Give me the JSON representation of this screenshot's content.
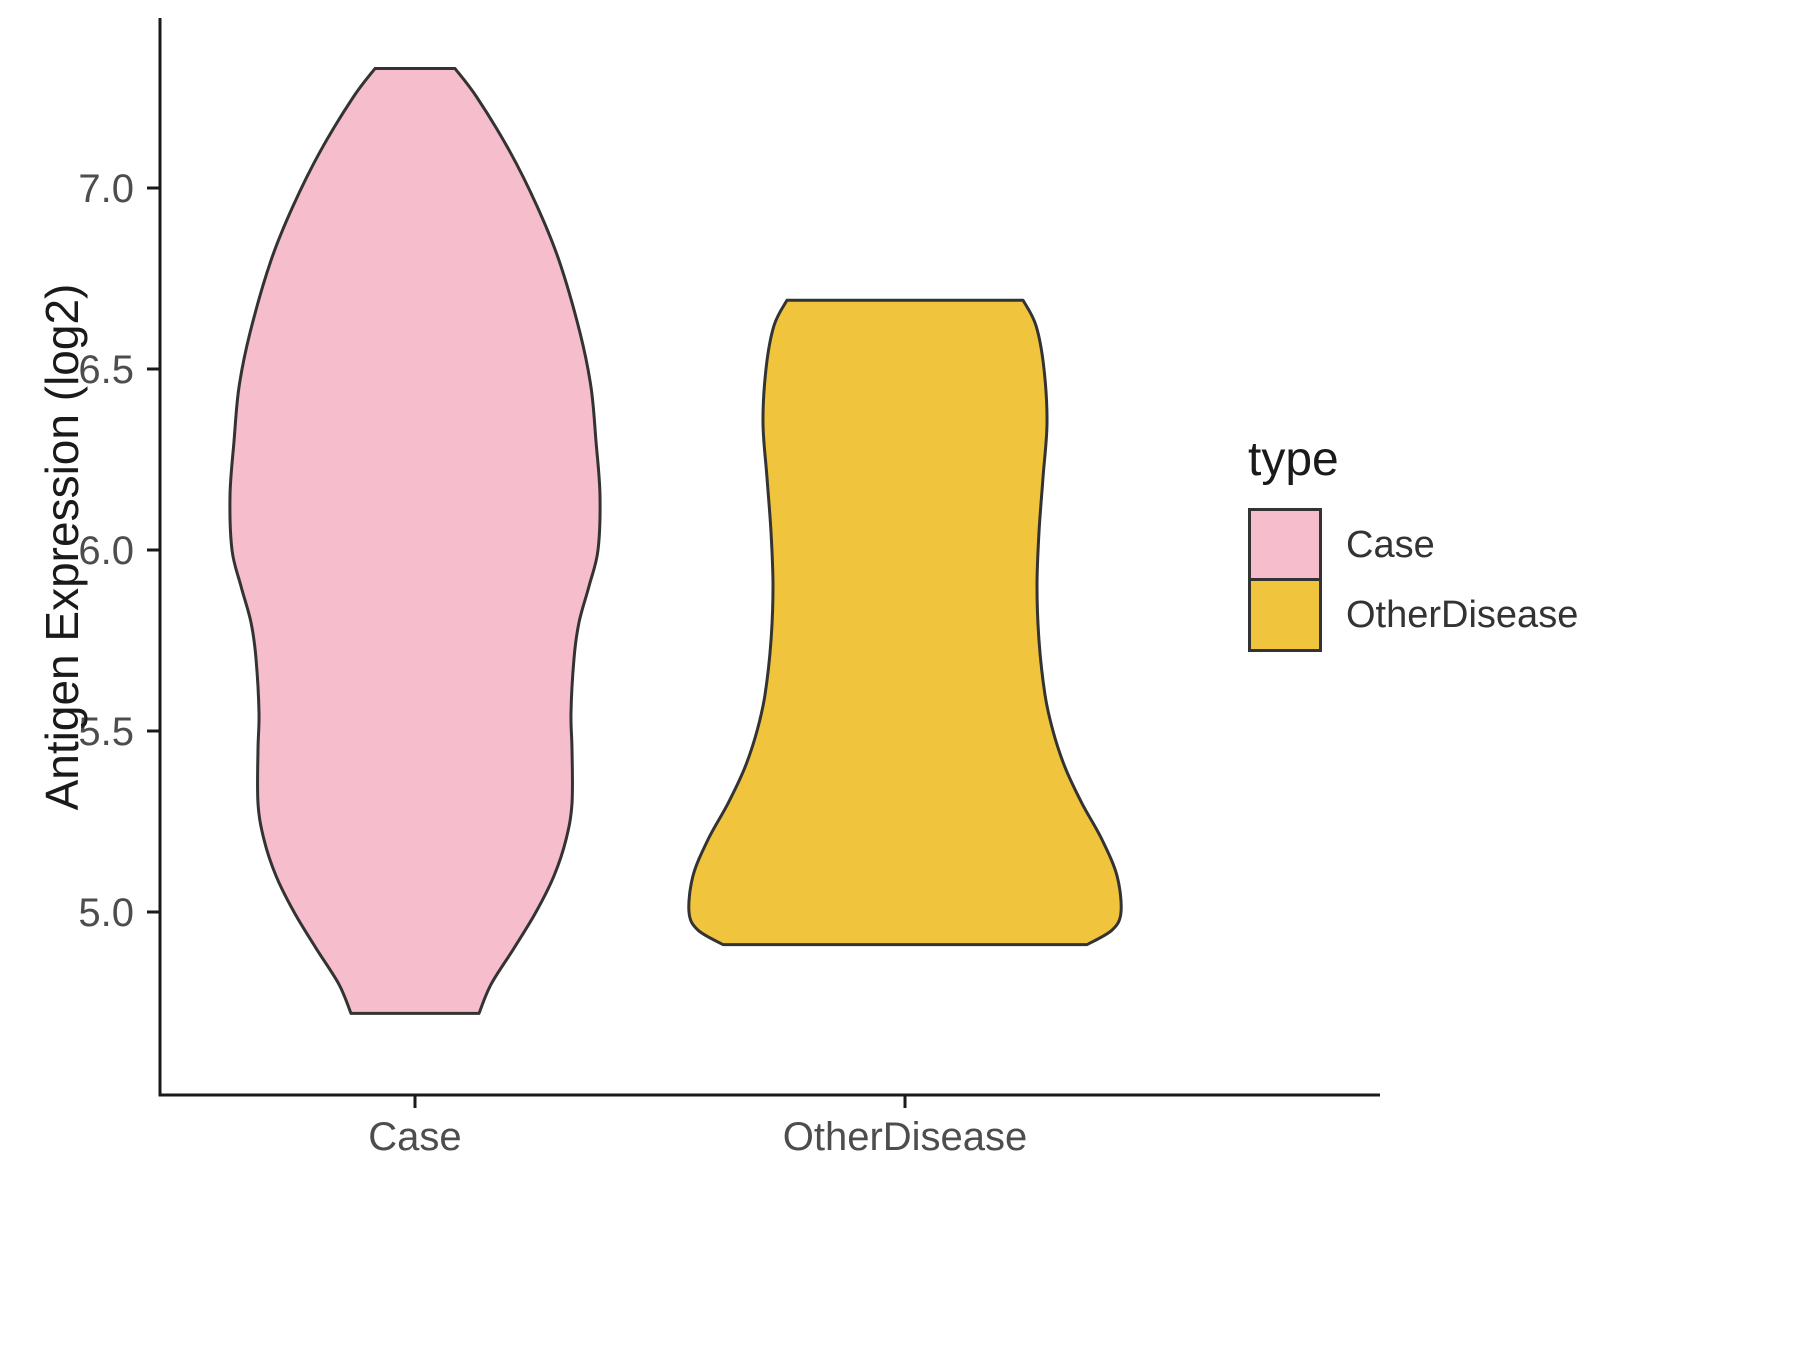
{
  "chart_data": {
    "type": "violin",
    "title": "",
    "xlabel": "",
    "ylabel": "Antigen Expression (log2)",
    "categories": [
      "Case",
      "OtherDisease"
    ],
    "y_ticks": [
      "5.0",
      "5.5",
      "6.0",
      "6.5",
      "7.0"
    ],
    "y_tick_values": [
      5.0,
      5.5,
      6.0,
      6.5,
      7.0
    ],
    "ylim": [
      4.5,
      7.47
    ],
    "grid": "off",
    "legend_position": "right",
    "legend": {
      "title": "type",
      "entries": [
        {
          "label": "Case",
          "color": "#F6BDCC"
        },
        {
          "label": "OtherDisease",
          "color": "#F0C43C"
        }
      ]
    },
    "style": {
      "axis_color": "#1a1a1a",
      "tick_label_color": "#4d4d4d",
      "violin_stroke": "#333333"
    },
    "violins": [
      {
        "category": "Case",
        "fill": "#F6BDCC",
        "y_min": 4.72,
        "y_max": 7.33,
        "profile": [
          [
            7.33,
            40
          ],
          [
            7.25,
            62
          ],
          [
            7.1,
            95
          ],
          [
            6.95,
            122
          ],
          [
            6.8,
            144
          ],
          [
            6.6,
            165
          ],
          [
            6.45,
            176
          ],
          [
            6.3,
            181
          ],
          [
            6.15,
            185
          ],
          [
            6.0,
            183
          ],
          [
            5.9,
            174
          ],
          [
            5.8,
            164
          ],
          [
            5.7,
            159
          ],
          [
            5.55,
            156
          ],
          [
            5.45,
            157
          ],
          [
            5.3,
            157
          ],
          [
            5.2,
            151
          ],
          [
            5.1,
            139
          ],
          [
            5.0,
            121
          ],
          [
            4.9,
            99
          ],
          [
            4.8,
            76
          ],
          [
            4.72,
            64
          ]
        ]
      },
      {
        "category": "OtherDisease",
        "fill": "#F0C43C",
        "y_min": 4.91,
        "y_max": 6.69,
        "profile": [
          [
            6.69,
            118
          ],
          [
            6.62,
            131
          ],
          [
            6.5,
            139
          ],
          [
            6.35,
            142
          ],
          [
            6.2,
            138
          ],
          [
            6.05,
            134
          ],
          [
            5.9,
            132
          ],
          [
            5.75,
            134
          ],
          [
            5.6,
            140
          ],
          [
            5.5,
            148
          ],
          [
            5.4,
            160
          ],
          [
            5.3,
            177
          ],
          [
            5.2,
            197
          ],
          [
            5.1,
            212
          ],
          [
            5.0,
            216
          ],
          [
            4.95,
            207
          ],
          [
            4.91,
            182
          ]
        ]
      }
    ]
  }
}
